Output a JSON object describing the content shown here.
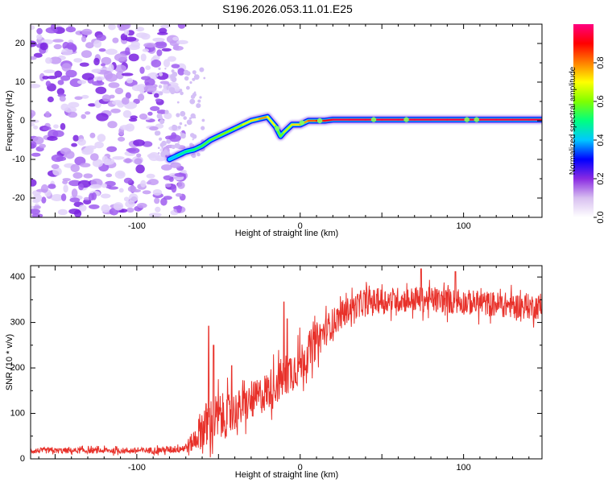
{
  "figure_title": "S196.2026.053.11.01.E25",
  "chart_data": [
    {
      "type": "heatmap",
      "title": "S196.2026.053.11.01.E25",
      "xlabel": "Height of straight line (km)",
      "ylabel": "Frequency (Hz)",
      "xlim": [
        -165,
        148
      ],
      "ylim": [
        -25,
        25
      ],
      "x_ticks": [
        -100,
        0,
        100
      ],
      "x_tick_labels": [
        "-100",
        "0",
        "100"
      ],
      "y_ticks": [
        -20,
        -10,
        0,
        10,
        20
      ],
      "y_tick_labels": [
        "-20",
        "-10",
        "0",
        "10",
        "20"
      ],
      "noise_region_x": [
        -165,
        -78
      ],
      "ridge": {
        "x": [
          -80,
          -75,
          -70,
          -65,
          -60,
          -55,
          -50,
          -45,
          -40,
          -35,
          -30,
          -25,
          -20,
          -15,
          -12,
          -10,
          -5,
          0,
          5,
          10,
          15,
          20,
          30,
          40,
          50,
          60,
          70,
          80,
          90,
          100,
          110,
          120,
          130,
          140,
          148
        ],
        "y": [
          -10,
          -9,
          -8,
          -7.5,
          -6.5,
          -5,
          -4,
          -3,
          -2,
          -1,
          0,
          0.5,
          1,
          -1.5,
          -4,
          -3,
          -1,
          -1,
          0,
          0,
          0,
          0.3,
          0.3,
          0.3,
          0.3,
          0.3,
          0.3,
          0.3,
          0.3,
          0.3,
          0.3,
          0.3,
          0.3,
          0.3,
          0.3
        ],
        "amplitude": [
          0.35,
          0.45,
          0.5,
          0.5,
          0.55,
          0.55,
          0.6,
          0.6,
          0.6,
          0.65,
          0.7,
          0.75,
          0.8,
          0.6,
          0.55,
          0.6,
          0.7,
          0.75,
          0.8,
          0.85,
          0.9,
          0.95,
          0.95,
          0.95,
          0.95,
          0.95,
          0.95,
          0.95,
          0.95,
          0.95,
          0.95,
          0.95,
          0.95,
          0.95,
          0.95
        ]
      },
      "colorbar": {
        "label": "Normalized spectral amplitude",
        "range": [
          0,
          1
        ],
        "ticks": [
          0.0,
          0.2,
          0.4,
          0.6,
          0.8
        ],
        "tick_labels": [
          "0.0",
          "0.2",
          "0.4",
          "0.6",
          "0.8"
        ],
        "colors": [
          "#ffffff",
          "#d8c0f0",
          "#8a2be2",
          "#0000ff",
          "#00c8ff",
          "#00ff80",
          "#80ff00",
          "#ffff00",
          "#ff8000",
          "#ff0000",
          "#ff0080"
        ]
      }
    },
    {
      "type": "line",
      "xlabel": "Height of straight line (km)",
      "ylabel": "SNR (10 * v/v)",
      "xlim": [
        -165,
        148
      ],
      "ylim": [
        0,
        425
      ],
      "x_ticks": [
        -100,
        0,
        100
      ],
      "x_tick_labels": [
        "-100",
        "0",
        "100"
      ],
      "y_ticks": [
        0,
        100,
        200,
        300,
        400
      ],
      "y_tick_labels": [
        "0",
        "100",
        "200",
        "300",
        "400"
      ],
      "series": [
        {
          "name": "SNR",
          "color": "#e8312a",
          "trend_x": [
            -165,
            -140,
            -120,
            -100,
            -80,
            -70,
            -65,
            -60,
            -55,
            -50,
            -45,
            -40,
            -30,
            -20,
            -10,
            0,
            10,
            20,
            30,
            40,
            60,
            80,
            100,
            120,
            140,
            148
          ],
          "trend_y": [
            18,
            18,
            18,
            18,
            20,
            25,
            40,
            70,
            80,
            90,
            95,
            105,
            125,
            150,
            180,
            210,
            260,
            300,
            330,
            345,
            350,
            350,
            345,
            340,
            335,
            335
          ],
          "noise_amplitude": [
            8,
            8,
            8,
            8,
            10,
            15,
            30,
            60,
            70,
            70,
            60,
            55,
            50,
            55,
            60,
            60,
            50,
            40,
            35,
            35,
            35,
            35,
            35,
            35,
            35,
            35
          ],
          "spikes": [
            {
              "x": -56,
              "y": 292
            },
            {
              "x": -53,
              "y": 250
            },
            {
              "x": -42,
              "y": 205
            },
            {
              "x": -10,
              "y": 345
            },
            {
              "x": -8,
              "y": 308
            },
            {
              "x": 74,
              "y": 418
            },
            {
              "x": 95,
              "y": 412
            }
          ]
        }
      ]
    }
  ]
}
